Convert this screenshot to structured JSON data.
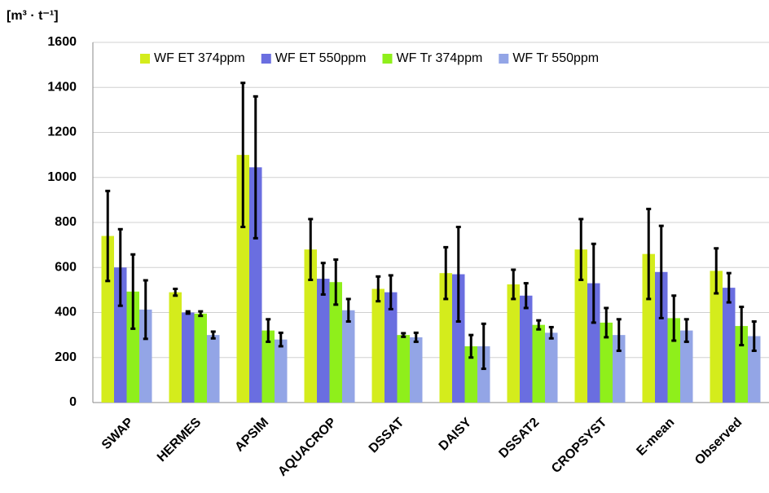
{
  "chart_data": {
    "type": "bar",
    "y_axis_label": "[m³ · t⁻¹]",
    "categories": [
      "SWAP",
      "HERMES",
      "APSIM",
      "AQUACROP",
      "DSSAT",
      "DAISY",
      "DSSAT2",
      "CROPSYST",
      "E-mean",
      "Observed"
    ],
    "series": [
      {
        "name": "WF ET 374ppm",
        "color": "#d4ec1c",
        "values": [
          740,
          490,
          1100,
          680,
          505,
          575,
          525,
          680,
          660,
          585
        ],
        "errors": [
          200,
          15,
          320,
          135,
          55,
          115,
          65,
          135,
          200,
          100
        ]
      },
      {
        "name": "WF ET 550ppm",
        "color": "#6a6ee0",
        "values": [
          600,
          400,
          1045,
          550,
          490,
          570,
          475,
          530,
          580,
          510
        ],
        "errors": [
          170,
          5,
          315,
          70,
          75,
          210,
          55,
          175,
          205,
          65
        ]
      },
      {
        "name": "WF Tr 374ppm",
        "color": "#8fef1b",
        "values": [
          493,
          395,
          320,
          535,
          300,
          250,
          345,
          355,
          375,
          340
        ],
        "errors": [
          165,
          10,
          50,
          100,
          8,
          50,
          20,
          65,
          100,
          85
        ]
      },
      {
        "name": "WF Tr 550ppm",
        "color": "#93a5e6",
        "values": [
          413,
          300,
          280,
          410,
          290,
          250,
          310,
          300,
          320,
          295
        ],
        "errors": [
          130,
          15,
          30,
          50,
          20,
          100,
          25,
          70,
          50,
          65
        ]
      }
    ],
    "ylim": [
      0,
      1600
    ],
    "yticks": [
      0,
      200,
      400,
      600,
      800,
      1000,
      1200,
      1400,
      1600
    ],
    "grid": true,
    "legend": "top"
  }
}
